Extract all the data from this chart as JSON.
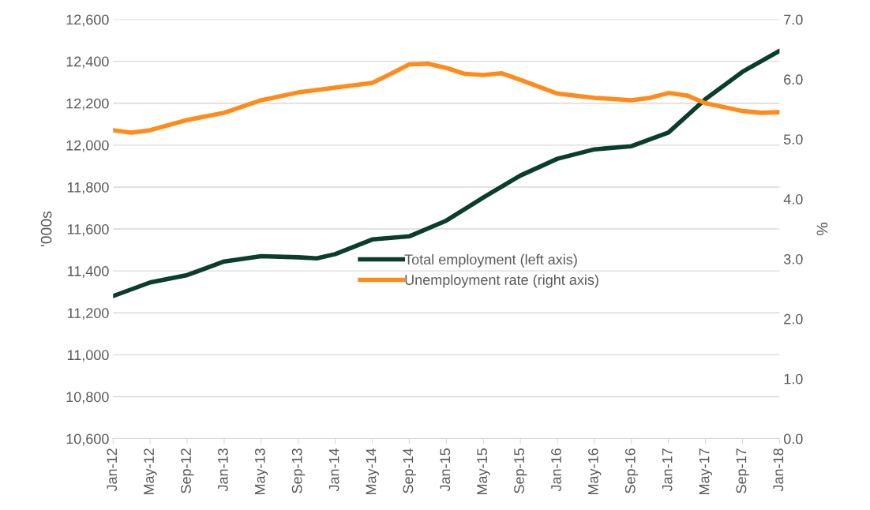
{
  "chart_data": {
    "type": "line",
    "ylabel": "'000s",
    "y2label": "%",
    "xlim": [
      "2012-01",
      "2018-01"
    ],
    "xticks": [
      {
        "value": "2012-01",
        "label": "Jan-12"
      },
      {
        "value": "2012-05",
        "label": "May-12"
      },
      {
        "value": "2012-09",
        "label": "Sep-12"
      },
      {
        "value": "2013-01",
        "label": "Jan-13"
      },
      {
        "value": "2013-05",
        "label": "May-13"
      },
      {
        "value": "2013-09",
        "label": "Sep-13"
      },
      {
        "value": "2014-01",
        "label": "Jan-14"
      },
      {
        "value": "2014-05",
        "label": "May-14"
      },
      {
        "value": "2014-09",
        "label": "Sep-14"
      },
      {
        "value": "2015-01",
        "label": "Jan-15"
      },
      {
        "value": "2015-05",
        "label": "May-15"
      },
      {
        "value": "2015-09",
        "label": "Sep-15"
      },
      {
        "value": "2016-01",
        "label": "Jan-16"
      },
      {
        "value": "2016-05",
        "label": "May-16"
      },
      {
        "value": "2016-09",
        "label": "Sep-16"
      },
      {
        "value": "2017-01",
        "label": "Jan-17"
      },
      {
        "value": "2017-05",
        "label": "May-17"
      },
      {
        "value": "2017-09",
        "label": "Sep-17"
      },
      {
        "value": "2018-01",
        "label": "Jan-18"
      }
    ],
    "ylim": [
      10600,
      12600
    ],
    "yticks": [
      {
        "value": 10600,
        "label": "10,600"
      },
      {
        "value": 10800,
        "label": "10,800"
      },
      {
        "value": 11000,
        "label": "11,000"
      },
      {
        "value": 11200,
        "label": "11,200"
      },
      {
        "value": 11400,
        "label": "11,400"
      },
      {
        "value": 11600,
        "label": "11,600"
      },
      {
        "value": 11800,
        "label": "11,800"
      },
      {
        "value": 12000,
        "label": "12,000"
      },
      {
        "value": 12200,
        "label": "12,200"
      },
      {
        "value": 12400,
        "label": "12,400"
      },
      {
        "value": 12600,
        "label": "12,600"
      }
    ],
    "y2lim": [
      0,
      7
    ],
    "y2ticks": [
      {
        "value": 0,
        "label": "0.0"
      },
      {
        "value": 1,
        "label": "1.0"
      },
      {
        "value": 2,
        "label": "2.0"
      },
      {
        "value": 3,
        "label": "3.0"
      },
      {
        "value": 4,
        "label": "4.0"
      },
      {
        "value": 5,
        "label": "5.0"
      },
      {
        "value": 6,
        "label": "6.0"
      },
      {
        "value": 7,
        "label": "7.0"
      }
    ],
    "grid": "y",
    "legend": "center",
    "marker": "none",
    "line_style": "solid",
    "series": [
      {
        "name": "Total employment (left axis)",
        "color": "#0b3d2e",
        "x": [
          "2012-01",
          "2012-05",
          "2012-09",
          "2013-01",
          "2013-05",
          "2013-09",
          "2013-11",
          "2014-01",
          "2014-05",
          "2014-09",
          "2015-01",
          "2015-05",
          "2015-09",
          "2016-01",
          "2016-05",
          "2016-09",
          "2017-01",
          "2017-05",
          "2017-09",
          "2018-01"
        ],
        "values": [
          11280,
          11345,
          11380,
          11445,
          11470,
          11465,
          11460,
          11480,
          11550,
          11565,
          11640,
          11750,
          11855,
          11935,
          11980,
          11995,
          12060,
          12220,
          12350,
          12450
        ]
      },
      {
        "name": "Unemployment rate (right axis)",
        "color": "#ff8c1a",
        "axis": "y2",
        "x": [
          "2012-01",
          "2012-03",
          "2012-05",
          "2012-09",
          "2013-01",
          "2013-05",
          "2013-09",
          "2014-01",
          "2014-05",
          "2014-07",
          "2014-09",
          "2014-11",
          "2015-01",
          "2015-03",
          "2015-05",
          "2015-07",
          "2015-09",
          "2016-01",
          "2016-05",
          "2016-09",
          "2016-11",
          "2017-01",
          "2017-03",
          "2017-05",
          "2017-09",
          "2017-11",
          "2018-01"
        ],
        "values": [
          5.15,
          5.11,
          5.15,
          5.32,
          5.44,
          5.65,
          5.78,
          5.86,
          5.94,
          6.09,
          6.25,
          6.26,
          6.19,
          6.09,
          6.07,
          6.1,
          5.99,
          5.76,
          5.69,
          5.65,
          5.69,
          5.77,
          5.73,
          5.6,
          5.47,
          5.44,
          5.45
        ]
      }
    ]
  }
}
